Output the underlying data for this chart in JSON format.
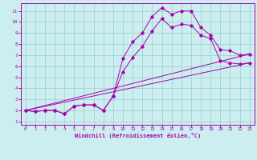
{
  "xlabel": "Windchill (Refroidissement éolien,°C)",
  "bg_color": "#cceef0",
  "line_color": "#aa00aa",
  "grid_color": "#99cccc",
  "xlim": [
    -0.5,
    23.5
  ],
  "ylim": [
    0.7,
    11.7
  ],
  "xticks": [
    0,
    1,
    2,
    3,
    4,
    5,
    6,
    7,
    8,
    9,
    10,
    11,
    12,
    13,
    14,
    15,
    16,
    17,
    18,
    19,
    20,
    21,
    22,
    23
  ],
  "yticks": [
    1,
    2,
    3,
    4,
    5,
    6,
    7,
    8,
    9,
    10,
    11
  ],
  "series1_x": [
    0,
    1,
    2,
    3,
    4,
    5,
    6,
    7,
    8,
    9,
    10,
    11,
    12,
    13,
    14,
    15,
    16,
    17,
    18,
    19,
    20,
    21,
    22,
    23
  ],
  "series1_y": [
    2.0,
    1.9,
    2.0,
    2.0,
    1.7,
    2.4,
    2.5,
    2.5,
    2.0,
    3.3,
    6.7,
    8.2,
    9.0,
    10.5,
    11.3,
    10.7,
    11.0,
    11.0,
    9.5,
    8.8,
    7.5,
    7.4,
    7.0,
    7.1
  ],
  "series2_x": [
    0,
    1,
    2,
    3,
    4,
    5,
    6,
    7,
    8,
    9,
    10,
    11,
    12,
    13,
    14,
    15,
    16,
    17,
    18,
    19,
    20,
    21,
    22,
    23
  ],
  "series2_y": [
    2.0,
    1.9,
    2.0,
    2.0,
    1.7,
    2.4,
    2.5,
    2.5,
    2.0,
    3.3,
    5.5,
    6.8,
    7.8,
    9.2,
    10.3,
    9.5,
    9.8,
    9.7,
    8.8,
    8.5,
    6.5,
    6.3,
    6.2,
    6.3
  ],
  "series3_x": [
    0,
    23
  ],
  "series3_y": [
    2.0,
    7.1
  ],
  "series4_x": [
    0,
    23
  ],
  "series4_y": [
    2.0,
    6.3
  ],
  "marker": "D",
  "markersize": 1.8,
  "linewidth": 0.7
}
